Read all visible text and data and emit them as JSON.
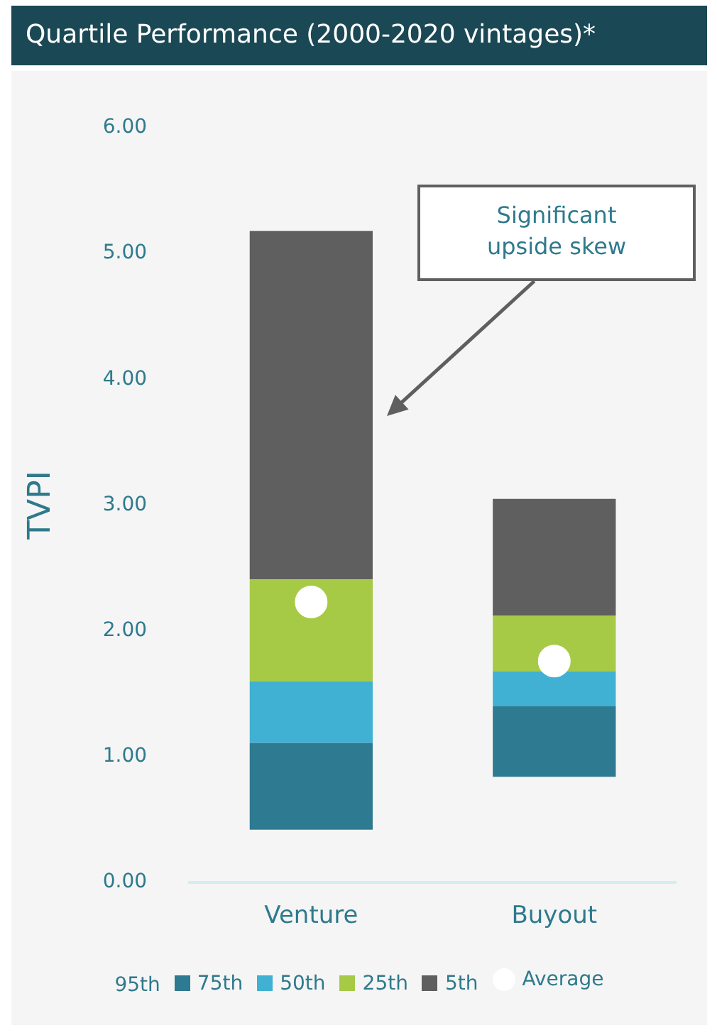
{
  "chart_data": {
    "type": "bar",
    "title": "Quartile Performance (2000-2020  vintages)*",
    "ylabel": "TVPI",
    "categories": [
      "Venture",
      "Buyout"
    ],
    "stacked": true,
    "legend_title": "95th",
    "series": [
      {
        "name": "75th",
        "color": "#2e7a90",
        "base": [
          0.42,
          0.84
        ],
        "values": [
          0.69,
          0.56
        ]
      },
      {
        "name": "50th",
        "color": "#40b1d3",
        "values": [
          0.49,
          0.28
        ]
      },
      {
        "name": "25th",
        "color": "#a6ca46",
        "values": [
          0.81,
          0.44
        ]
      },
      {
        "name": "5th",
        "color": "#5f5f5f",
        "values": [
          2.77,
          0.93
        ]
      },
      {
        "name": "Average",
        "type": "scatter",
        "color": "#ffffff",
        "marker": "circle",
        "x": [
          "Venture",
          "Buyout"
        ],
        "values": [
          2.23,
          1.76
        ]
      }
    ],
    "ylim": [
      0,
      6
    ],
    "yticks": [
      {
        "value": 0,
        "label": "0.00"
      },
      {
        "value": 1,
        "label": "1.00"
      },
      {
        "value": 2,
        "label": "2.00"
      },
      {
        "value": 3,
        "label": "3.00"
      },
      {
        "value": 4,
        "label": "4.00"
      },
      {
        "value": 5,
        "label": "5.00"
      },
      {
        "value": 6,
        "label": "6.00"
      }
    ],
    "grid": false,
    "legend": "bottom",
    "annotations": [
      "Significant\nupside skew"
    ]
  }
}
